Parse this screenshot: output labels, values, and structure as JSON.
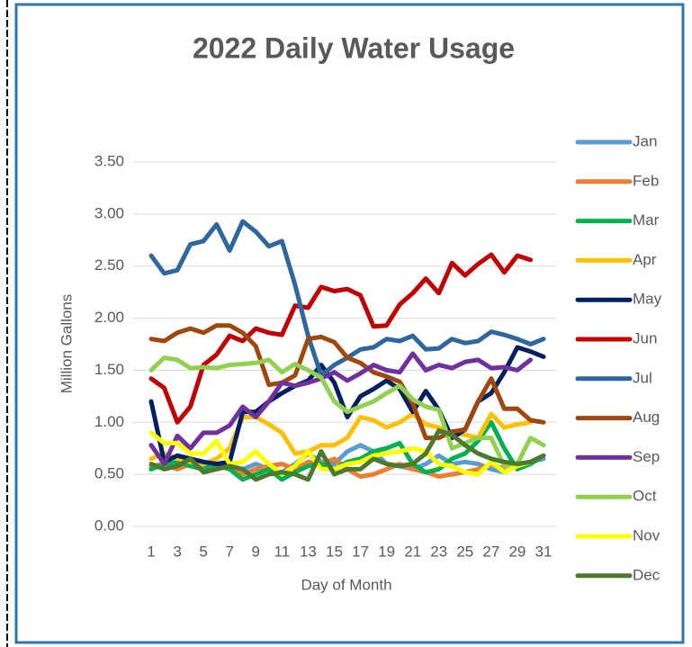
{
  "chart_data": {
    "type": "line",
    "title": "2022 Daily Water Usage",
    "x_label": "Day of Month",
    "y_label": "Million Gallons",
    "x": [
      1,
      2,
      3,
      4,
      5,
      6,
      7,
      8,
      9,
      10,
      11,
      12,
      13,
      14,
      15,
      16,
      17,
      18,
      19,
      20,
      21,
      22,
      23,
      24,
      25,
      26,
      27,
      28,
      29,
      30,
      31
    ],
    "xlim": [
      1,
      31
    ],
    "xticks": [
      1,
      3,
      5,
      7,
      9,
      11,
      13,
      15,
      17,
      19,
      21,
      23,
      25,
      27,
      29,
      31
    ],
    "ylim": [
      0,
      3.5
    ],
    "yticks": [
      {
        "value": 0,
        "label": "0.00"
      },
      {
        "value": 0.5,
        "label": "0.50"
      },
      {
        "value": 1,
        "label": "1.00"
      },
      {
        "value": 1.5,
        "label": "1.50"
      },
      {
        "value": 2,
        "label": "2.00"
      },
      {
        "value": 2.5,
        "label": "2.50"
      },
      {
        "value": 3,
        "label": "3.00"
      },
      {
        "value": 3.5,
        "label": "3.50"
      }
    ],
    "grid": true,
    "legend": "right",
    "series": [
      {
        "name": "Jan",
        "color": "#5B9BD5",
        "values": [
          0.55,
          0.6,
          0.58,
          0.62,
          0.6,
          0.58,
          0.58,
          0.55,
          0.6,
          0.55,
          0.52,
          0.6,
          0.7,
          0.62,
          0.6,
          0.72,
          0.78,
          0.72,
          0.6,
          0.58,
          0.55,
          0.6,
          0.68,
          0.6,
          0.62,
          0.6,
          0.55,
          0.52,
          0.58,
          0.62,
          0.65
        ]
      },
      {
        "name": "Feb",
        "color": "#ED7D31",
        "values": [
          0.58,
          0.6,
          0.55,
          0.6,
          0.55,
          0.58,
          0.55,
          0.5,
          0.55,
          0.58,
          0.6,
          0.55,
          0.62,
          0.6,
          0.65,
          0.55,
          0.48,
          0.5,
          0.55,
          0.6,
          0.55,
          0.52,
          0.48,
          0.5,
          0.52,
          0.55,
          0.6,
          0.55,
          null,
          null,
          null
        ]
      },
      {
        "name": "Mar",
        "color": "#00B050",
        "values": [
          0.55,
          0.6,
          0.62,
          0.58,
          0.55,
          0.6,
          0.55,
          0.45,
          0.5,
          0.55,
          0.45,
          0.52,
          0.58,
          0.6,
          0.55,
          0.62,
          0.65,
          0.72,
          0.75,
          0.8,
          0.6,
          0.52,
          0.55,
          0.65,
          0.7,
          0.82,
          1.0,
          0.75,
          0.55,
          0.6,
          0.68
        ]
      },
      {
        "name": "Apr",
        "color": "#FFC000",
        "values": [
          0.65,
          0.7,
          0.65,
          0.62,
          0.6,
          0.65,
          0.75,
          1.05,
          1.05,
          0.98,
          0.9,
          0.7,
          0.72,
          0.78,
          0.78,
          0.85,
          1.05,
          1.02,
          0.95,
          1.0,
          1.08,
          0.98,
          0.95,
          0.9,
          0.88,
          0.85,
          1.08,
          0.95,
          0.98,
          1.0,
          null
        ]
      },
      {
        "name": "May",
        "color": "#002060",
        "values": [
          1.2,
          0.62,
          0.68,
          0.65,
          0.62,
          0.6,
          0.62,
          1.1,
          1.1,
          1.2,
          1.28,
          1.35,
          1.4,
          1.55,
          1.38,
          1.05,
          1.25,
          1.32,
          1.4,
          1.32,
          1.1,
          1.3,
          1.12,
          0.85,
          0.93,
          1.2,
          1.28,
          1.48,
          1.72,
          1.68,
          1.63
        ]
      },
      {
        "name": "Jun",
        "color": "#C00000",
        "values": [
          1.42,
          1.33,
          1.0,
          1.15,
          1.55,
          1.65,
          1.83,
          1.78,
          1.9,
          1.86,
          1.84,
          2.12,
          2.1,
          2.3,
          2.26,
          2.28,
          2.22,
          1.92,
          1.93,
          2.13,
          2.24,
          2.38,
          2.24,
          2.53,
          2.41,
          2.52,
          2.61,
          2.44,
          2.6,
          2.56,
          null
        ]
      },
      {
        "name": "Jul",
        "color": "#2E679E",
        "values": [
          2.6,
          2.43,
          2.46,
          2.71,
          2.74,
          2.9,
          2.65,
          2.93,
          2.83,
          2.69,
          2.74,
          2.32,
          1.83,
          1.45,
          1.55,
          1.62,
          1.7,
          1.72,
          1.8,
          1.78,
          1.83,
          1.7,
          1.71,
          1.8,
          1.76,
          1.78,
          1.87,
          1.84,
          1.8,
          1.75,
          1.8
        ]
      },
      {
        "name": "Aug",
        "color": "#9E480E",
        "values": [
          1.8,
          1.78,
          1.86,
          1.9,
          1.86,
          1.93,
          1.93,
          1.86,
          1.73,
          1.36,
          1.38,
          1.45,
          1.8,
          1.82,
          1.77,
          1.62,
          1.57,
          1.48,
          1.44,
          1.39,
          1.18,
          0.85,
          0.85,
          0.91,
          0.93,
          1.2,
          1.42,
          1.13,
          1.13,
          1.02,
          1.0
        ]
      },
      {
        "name": "Sep",
        "color": "#7030A0",
        "values": [
          0.78,
          0.6,
          0.87,
          0.75,
          0.9,
          0.9,
          0.97,
          1.15,
          1.05,
          1.2,
          1.38,
          1.35,
          1.38,
          1.42,
          1.48,
          1.4,
          1.47,
          1.55,
          1.5,
          1.48,
          1.66,
          1.5,
          1.55,
          1.52,
          1.58,
          1.6,
          1.52,
          1.53,
          1.5,
          1.6,
          null
        ]
      },
      {
        "name": "Oct",
        "color": "#92D050",
        "values": [
          1.5,
          1.62,
          1.6,
          1.52,
          1.53,
          1.52,
          1.55,
          1.56,
          1.57,
          1.6,
          1.48,
          1.56,
          1.5,
          1.43,
          1.2,
          1.1,
          1.15,
          1.2,
          1.28,
          1.35,
          1.22,
          1.15,
          1.12,
          0.75,
          0.8,
          0.85,
          0.85,
          0.58,
          0.6,
          0.85,
          0.78
        ]
      },
      {
        "name": "Nov",
        "color": "#FFFF00",
        "values": [
          0.9,
          0.8,
          0.8,
          0.7,
          0.7,
          0.82,
          0.6,
          0.62,
          0.72,
          0.6,
          0.5,
          0.58,
          0.72,
          0.55,
          0.55,
          0.6,
          0.62,
          0.68,
          0.7,
          0.72,
          0.75,
          0.72,
          0.6,
          0.58,
          0.52,
          0.5,
          0.62,
          0.52,
          0.58,
          0.62,
          null
        ]
      },
      {
        "name": "Dec",
        "color": "#4B7A2E",
        "values": [
          0.6,
          0.55,
          0.58,
          0.65,
          0.52,
          0.55,
          0.58,
          0.55,
          0.45,
          0.5,
          0.52,
          0.5,
          0.45,
          0.72,
          0.5,
          0.55,
          0.55,
          0.65,
          0.6,
          0.58,
          0.6,
          0.7,
          0.92,
          0.88,
          0.78,
          0.7,
          0.65,
          0.62,
          0.6,
          0.62,
          0.68
        ]
      }
    ]
  }
}
